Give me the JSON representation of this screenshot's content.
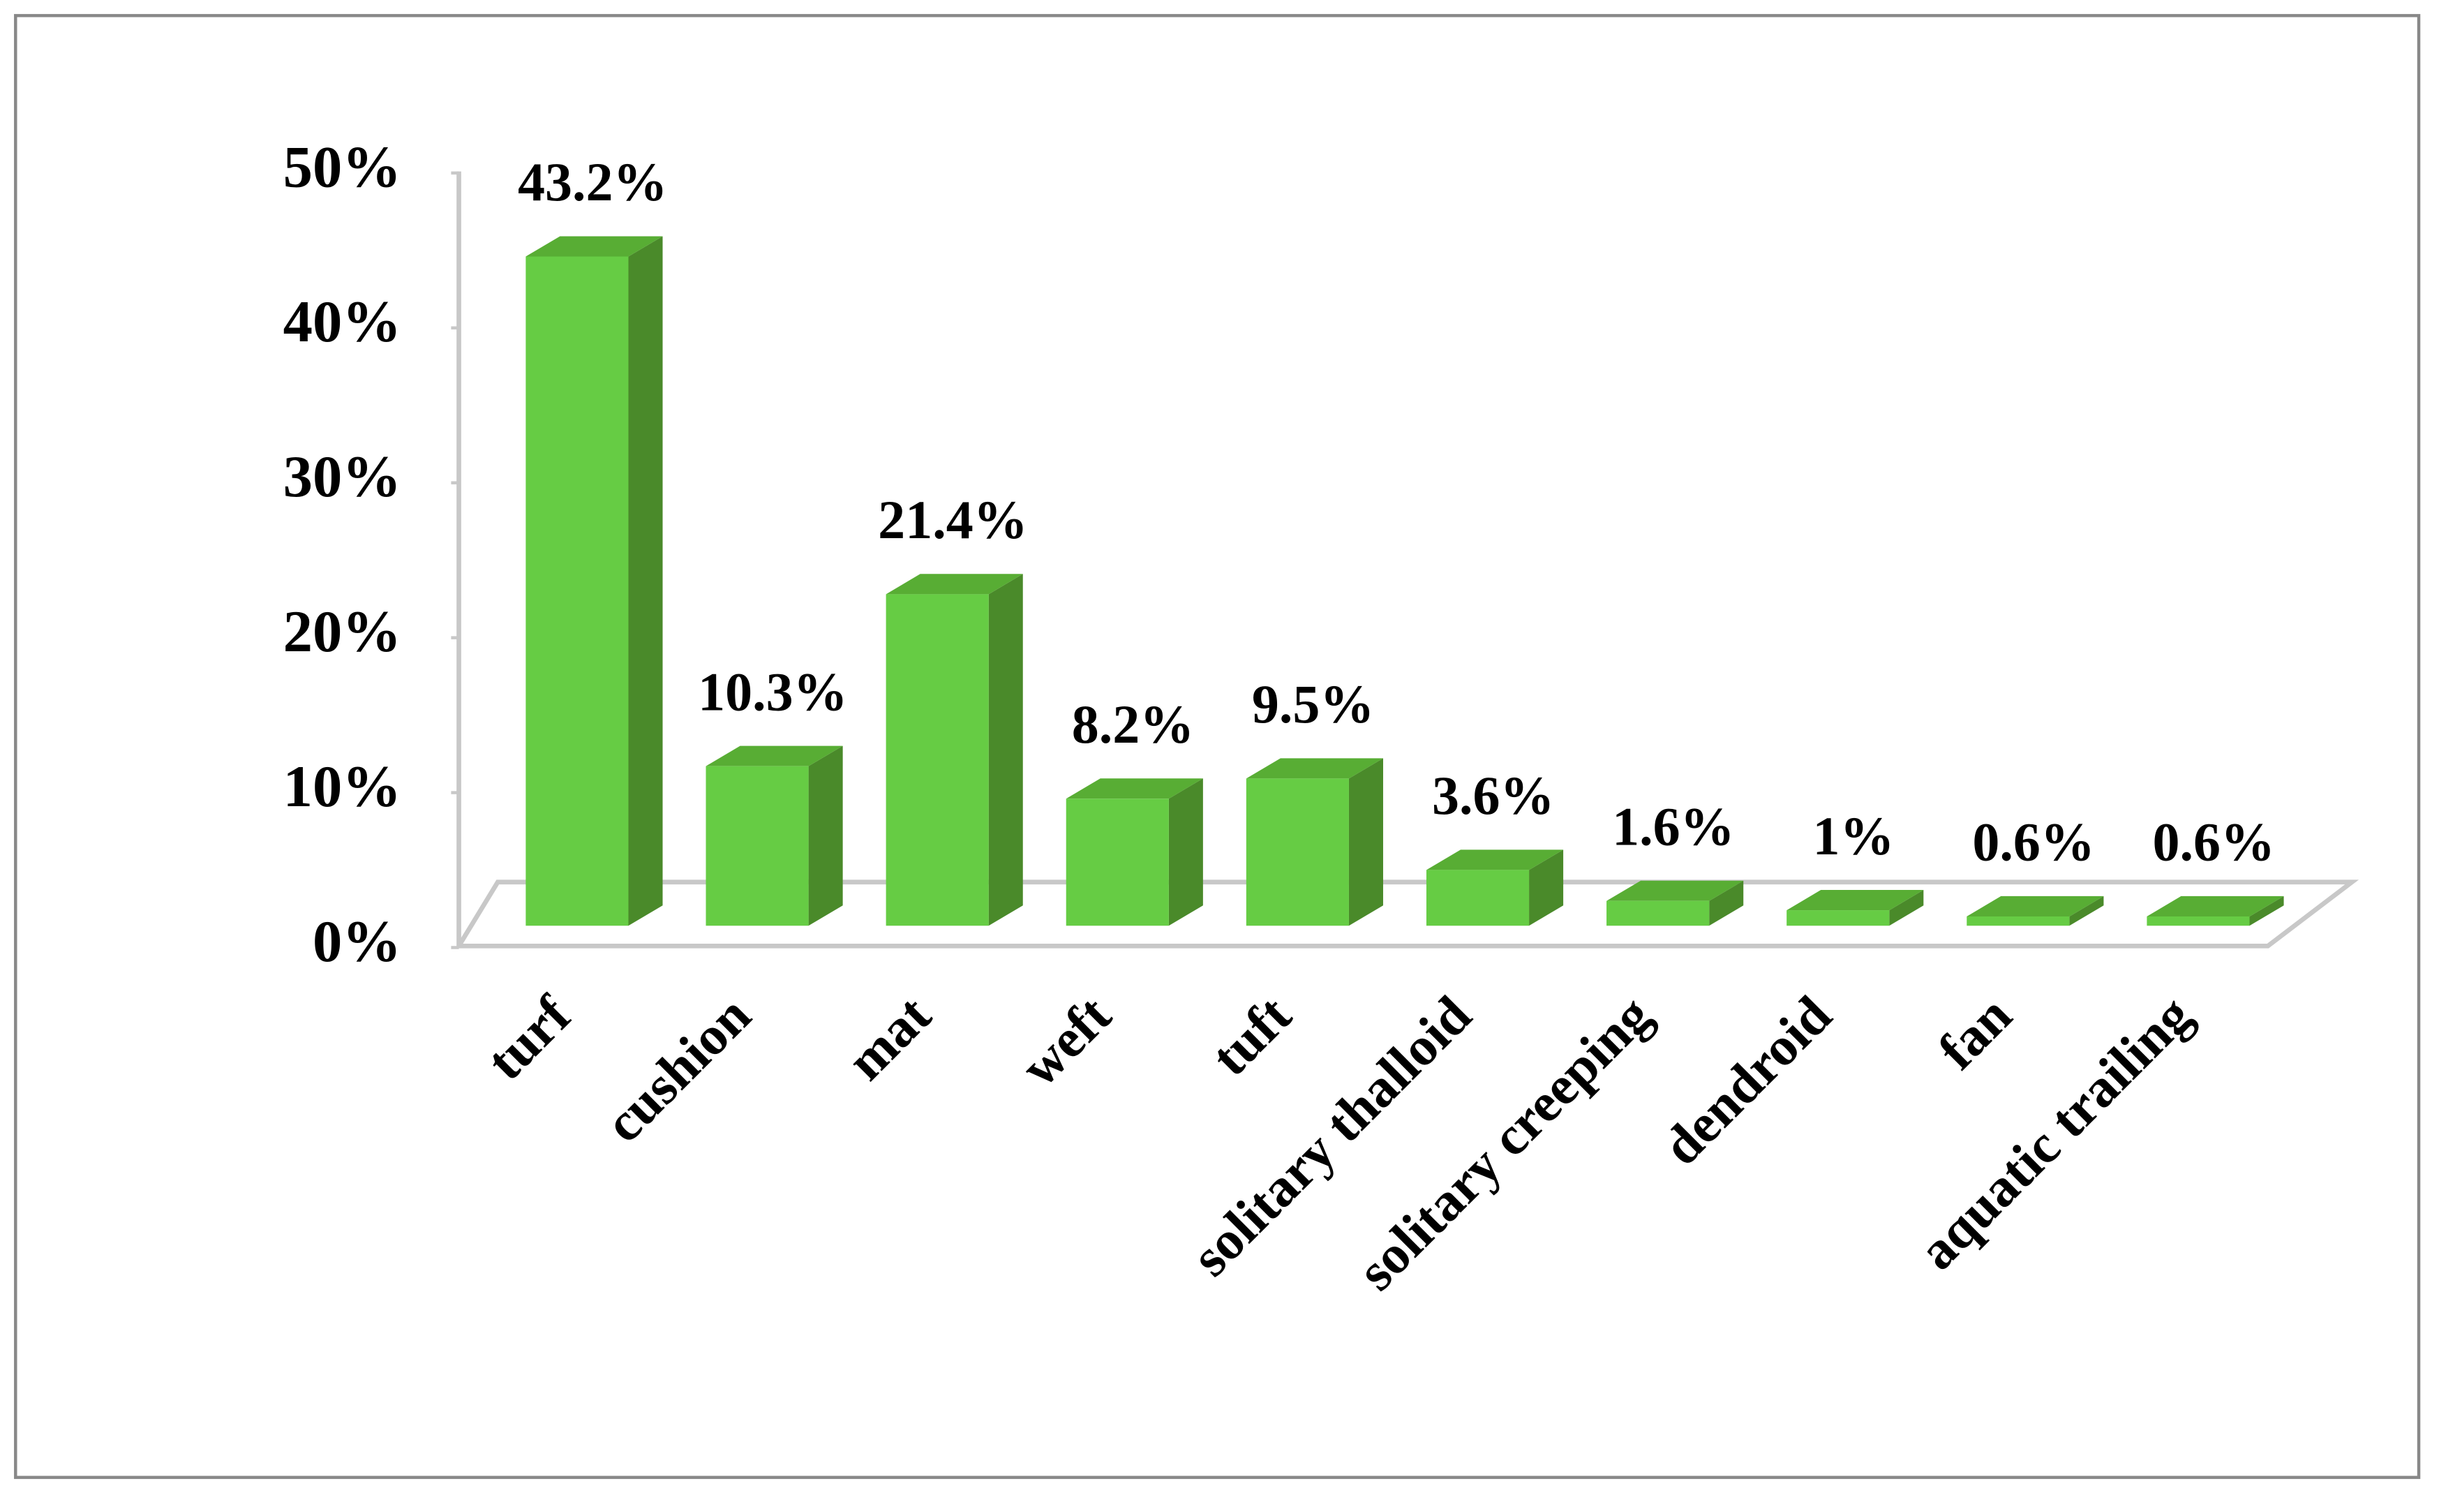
{
  "chart_data": {
    "type": "bar",
    "categories": [
      "turf",
      "cushion",
      "mat",
      "weft",
      "tuft",
      "solitary thalloid",
      "solitary creeping",
      "dendroid",
      "fan",
      "aquatic trailing"
    ],
    "values": [
      43.2,
      10.3,
      21.4,
      8.2,
      9.5,
      3.6,
      1.6,
      1,
      0.6,
      0.6
    ],
    "value_labels": [
      "43.2%",
      "10.3%",
      "21.4%",
      "8.2%",
      "9.5%",
      "3.6%",
      "1.6%",
      "1%",
      "0.6%",
      "0.6%"
    ],
    "color": "#66cc44",
    "ylim": [
      0,
      50
    ],
    "yticks": [
      {
        "value": 0,
        "label": "0%"
      },
      {
        "value": 10,
        "label": "10%"
      },
      {
        "value": 20,
        "label": "20%"
      },
      {
        "value": 30,
        "label": "30%"
      },
      {
        "value": 40,
        "label": "40%"
      },
      {
        "value": 50,
        "label": "50%"
      }
    ],
    "grid": false
  }
}
